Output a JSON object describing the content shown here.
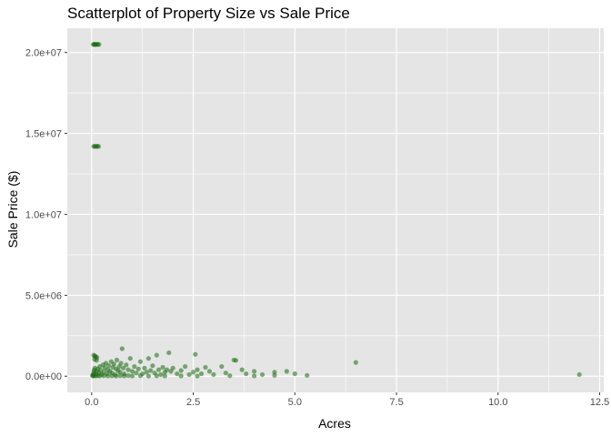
{
  "chart_data": {
    "type": "scatter",
    "title": "Scatterplot of Property Size vs Sale Price",
    "xlabel": "Acres",
    "ylabel": "Sale Price ($)",
    "xlim": [
      -0.6,
      12.6
    ],
    "ylim": [
      -1000000,
      21500000
    ],
    "x_ticks": [
      0,
      2.5,
      5,
      7.5,
      10,
      12.5
    ],
    "x_tick_labels": [
      "0.0",
      "2.5",
      "5.0",
      "7.5",
      "10.0",
      "12.5"
    ],
    "y_ticks": [
      0,
      5000000,
      10000000,
      15000000,
      20000000
    ],
    "y_tick_labels": [
      "0.0e+00",
      "5.0e+06",
      "1.0e+07",
      "1.5e+07",
      "2.0e+07"
    ],
    "grid": true,
    "point_color": "#1a6b10",
    "panel_color": "#e5e5e5",
    "grid_color": "#ffffff",
    "points": [
      [
        0.04,
        20500000
      ],
      [
        0.06,
        20500000
      ],
      [
        0.08,
        20500000
      ],
      [
        0.1,
        20500000
      ],
      [
        0.12,
        20500000
      ],
      [
        0.15,
        20500000
      ],
      [
        0.18,
        20500000
      ],
      [
        0.05,
        14200000
      ],
      [
        0.08,
        14200000
      ],
      [
        0.11,
        14200000
      ],
      [
        0.14,
        14200000
      ],
      [
        0.17,
        14200000
      ],
      [
        0.05,
        1300000
      ],
      [
        0.08,
        1250000
      ],
      [
        0.1,
        1200000
      ],
      [
        0.13,
        1150000
      ],
      [
        0.07,
        1050000
      ],
      [
        0.12,
        980000
      ],
      [
        0.02,
        50000
      ],
      [
        0.04,
        120000
      ],
      [
        0.05,
        250000
      ],
      [
        0.06,
        380000
      ],
      [
        0.08,
        500000
      ],
      [
        0.1,
        150000
      ],
      [
        0.12,
        300000
      ],
      [
        0.15,
        450000
      ],
      [
        0.18,
        200000
      ],
      [
        0.2,
        600000
      ],
      [
        0.22,
        350000
      ],
      [
        0.25,
        100000
      ],
      [
        0.28,
        700000
      ],
      [
        0.3,
        250000
      ],
      [
        0.32,
        500000
      ],
      [
        0.35,
        800000
      ],
      [
        0.38,
        150000
      ],
      [
        0.4,
        400000
      ],
      [
        0.42,
        650000
      ],
      [
        0.45,
        300000
      ],
      [
        0.48,
        900000
      ],
      [
        0.5,
        200000
      ],
      [
        0.52,
        550000
      ],
      [
        0.55,
        750000
      ],
      [
        0.58,
        100000
      ],
      [
        0.6,
        450000
      ],
      [
        0.62,
        1000000
      ],
      [
        0.65,
        350000
      ],
      [
        0.68,
        600000
      ],
      [
        0.7,
        250000
      ],
      [
        0.72,
        800000
      ],
      [
        0.75,
        1700000
      ],
      [
        0.78,
        500000
      ],
      [
        0.8,
        150000
      ],
      [
        0.85,
        700000
      ],
      [
        0.9,
        400000
      ],
      [
        0.95,
        1100000
      ],
      [
        1.0,
        300000
      ],
      [
        1.05,
        600000
      ],
      [
        1.1,
        200000
      ],
      [
        1.15,
        450000
      ],
      [
        1.2,
        900000
      ],
      [
        1.25,
        150000
      ],
      [
        1.3,
        500000
      ],
      [
        1.35,
        250000
      ],
      [
        1.4,
        1100000
      ],
      [
        1.45,
        350000
      ],
      [
        1.5,
        650000
      ],
      [
        1.55,
        200000
      ],
      [
        1.6,
        1300000
      ],
      [
        1.65,
        400000
      ],
      [
        1.7,
        100000
      ],
      [
        1.75,
        550000
      ],
      [
        1.8,
        250000
      ],
      [
        1.85,
        400000
      ],
      [
        1.9,
        1450000
      ],
      [
        1.95,
        300000
      ],
      [
        2.0,
        500000
      ],
      [
        2.1,
        150000
      ],
      [
        2.2,
        350000
      ],
      [
        2.3,
        600000
      ],
      [
        2.4,
        100000
      ],
      [
        2.5,
        250000
      ],
      [
        2.55,
        1350000
      ],
      [
        2.6,
        400000
      ],
      [
        2.7,
        150000
      ],
      [
        2.8,
        550000
      ],
      [
        2.9,
        300000
      ],
      [
        3.0,
        100000
      ],
      [
        3.2,
        600000
      ],
      [
        3.3,
        200000
      ],
      [
        3.5,
        1000000
      ],
      [
        3.55,
        980000
      ],
      [
        3.7,
        400000
      ],
      [
        3.8,
        150000
      ],
      [
        4.0,
        300000
      ],
      [
        4.2,
        100000
      ],
      [
        4.5,
        250000
      ],
      [
        4.5,
        50000
      ],
      [
        4.8,
        300000
      ],
      [
        5.0,
        150000
      ],
      [
        5.3,
        50000
      ],
      [
        6.5,
        850000
      ],
      [
        12.0,
        100000
      ],
      [
        0.03,
        20000
      ],
      [
        0.06,
        30000
      ],
      [
        0.1,
        10000
      ],
      [
        0.15,
        40000
      ],
      [
        0.2,
        20000
      ],
      [
        0.3,
        30000
      ],
      [
        0.4,
        15000
      ],
      [
        0.5,
        25000
      ],
      [
        0.6,
        10000
      ],
      [
        0.7,
        35000
      ],
      [
        0.8,
        20000
      ],
      [
        0.9,
        40000
      ],
      [
        1.0,
        15000
      ],
      [
        1.2,
        30000
      ],
      [
        1.4,
        10000
      ],
      [
        1.6,
        25000
      ],
      [
        1.8,
        15000
      ],
      [
        2.2,
        20000
      ],
      [
        2.6,
        10000
      ],
      [
        3.4,
        30000
      ],
      [
        4.0,
        15000
      ]
    ]
  }
}
